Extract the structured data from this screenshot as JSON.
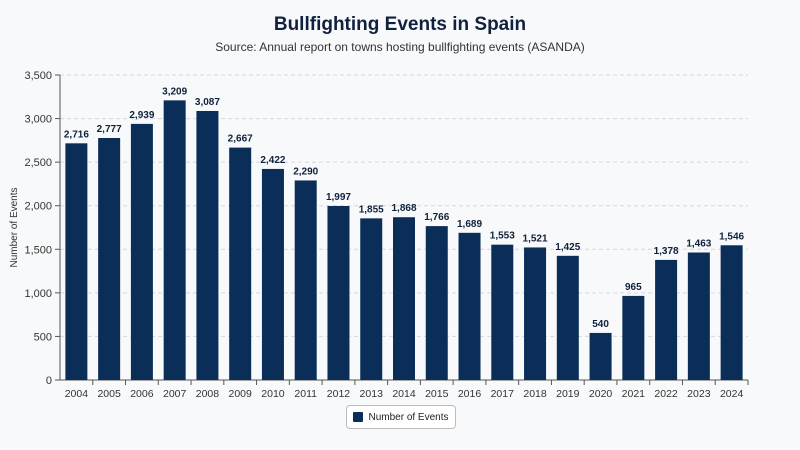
{
  "chart_data": {
    "type": "bar",
    "title": "Bullfighting Events in Spain",
    "subtitle": "Source: Annual report on towns hosting bullfighting events (ASANDA)",
    "xlabel": "",
    "ylabel": "Number of Events",
    "ylim": [
      0,
      3500
    ],
    "yticks": [
      "0",
      "500",
      "1,000",
      "1,500",
      "2,000",
      "2,500",
      "3,000",
      "3,500"
    ],
    "grid": true,
    "legend_placement": "bottom",
    "bar_color": "#0b2e59",
    "categories": [
      "2004",
      "2005",
      "2006",
      "2007",
      "2008",
      "2009",
      "2010",
      "2011",
      "2012",
      "2013",
      "2014",
      "2015",
      "2016",
      "2017",
      "2018",
      "2019",
      "2020",
      "2021",
      "2022",
      "2023",
      "2024"
    ],
    "series": [
      {
        "name": "Number of Events",
        "values": [
          2716,
          2777,
          2939,
          3209,
          3087,
          2667,
          2422,
          2290,
          1997,
          1855,
          1868,
          1766,
          1689,
          1553,
          1521,
          1425,
          540,
          965,
          1378,
          1463,
          1546
        ]
      }
    ]
  }
}
